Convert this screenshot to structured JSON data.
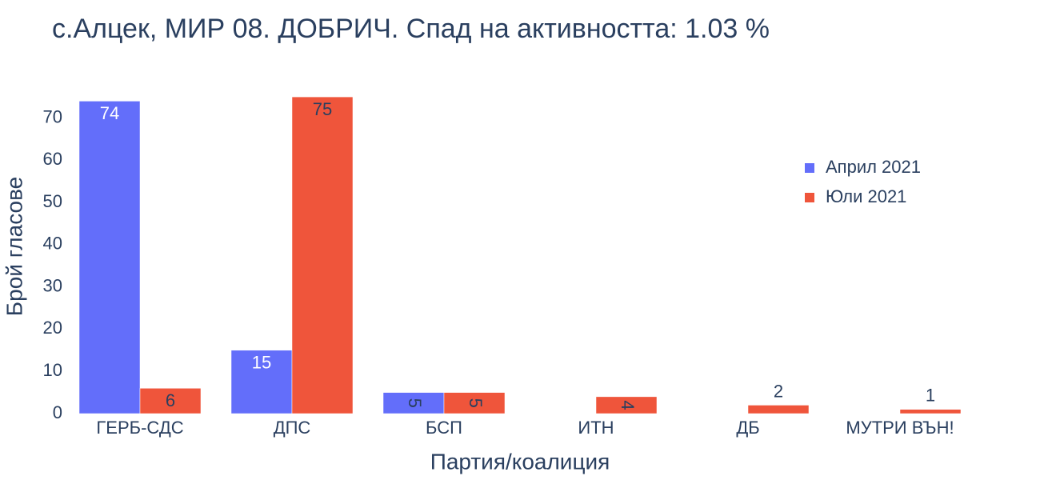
{
  "chart_data": {
    "type": "bar",
    "title": "с.Алцек, МИР 08. ДОБРИЧ. Спад на активността: 1.03  %",
    "x_label": "Партия/коалиция",
    "y_label": "Брой гласове",
    "categories": [
      "ГЕРБ-СДС",
      "ДПС",
      "БСП",
      "ИТН",
      "ДБ",
      "МУТРИ ВЪН!"
    ],
    "series": [
      {
        "name": "Април 2021",
        "color": "#636efa",
        "values": [
          74,
          15,
          5,
          0,
          0,
          0
        ]
      },
      {
        "name": "Юли 2021",
        "color": "#ef553b",
        "values": [
          6,
          75,
          5,
          4,
          2,
          1
        ]
      }
    ],
    "ylim": [
      0,
      79
    ],
    "yticks": [
      0,
      10,
      20,
      30,
      40,
      50,
      60,
      70
    ],
    "grid": false,
    "legend": "top-right"
  }
}
